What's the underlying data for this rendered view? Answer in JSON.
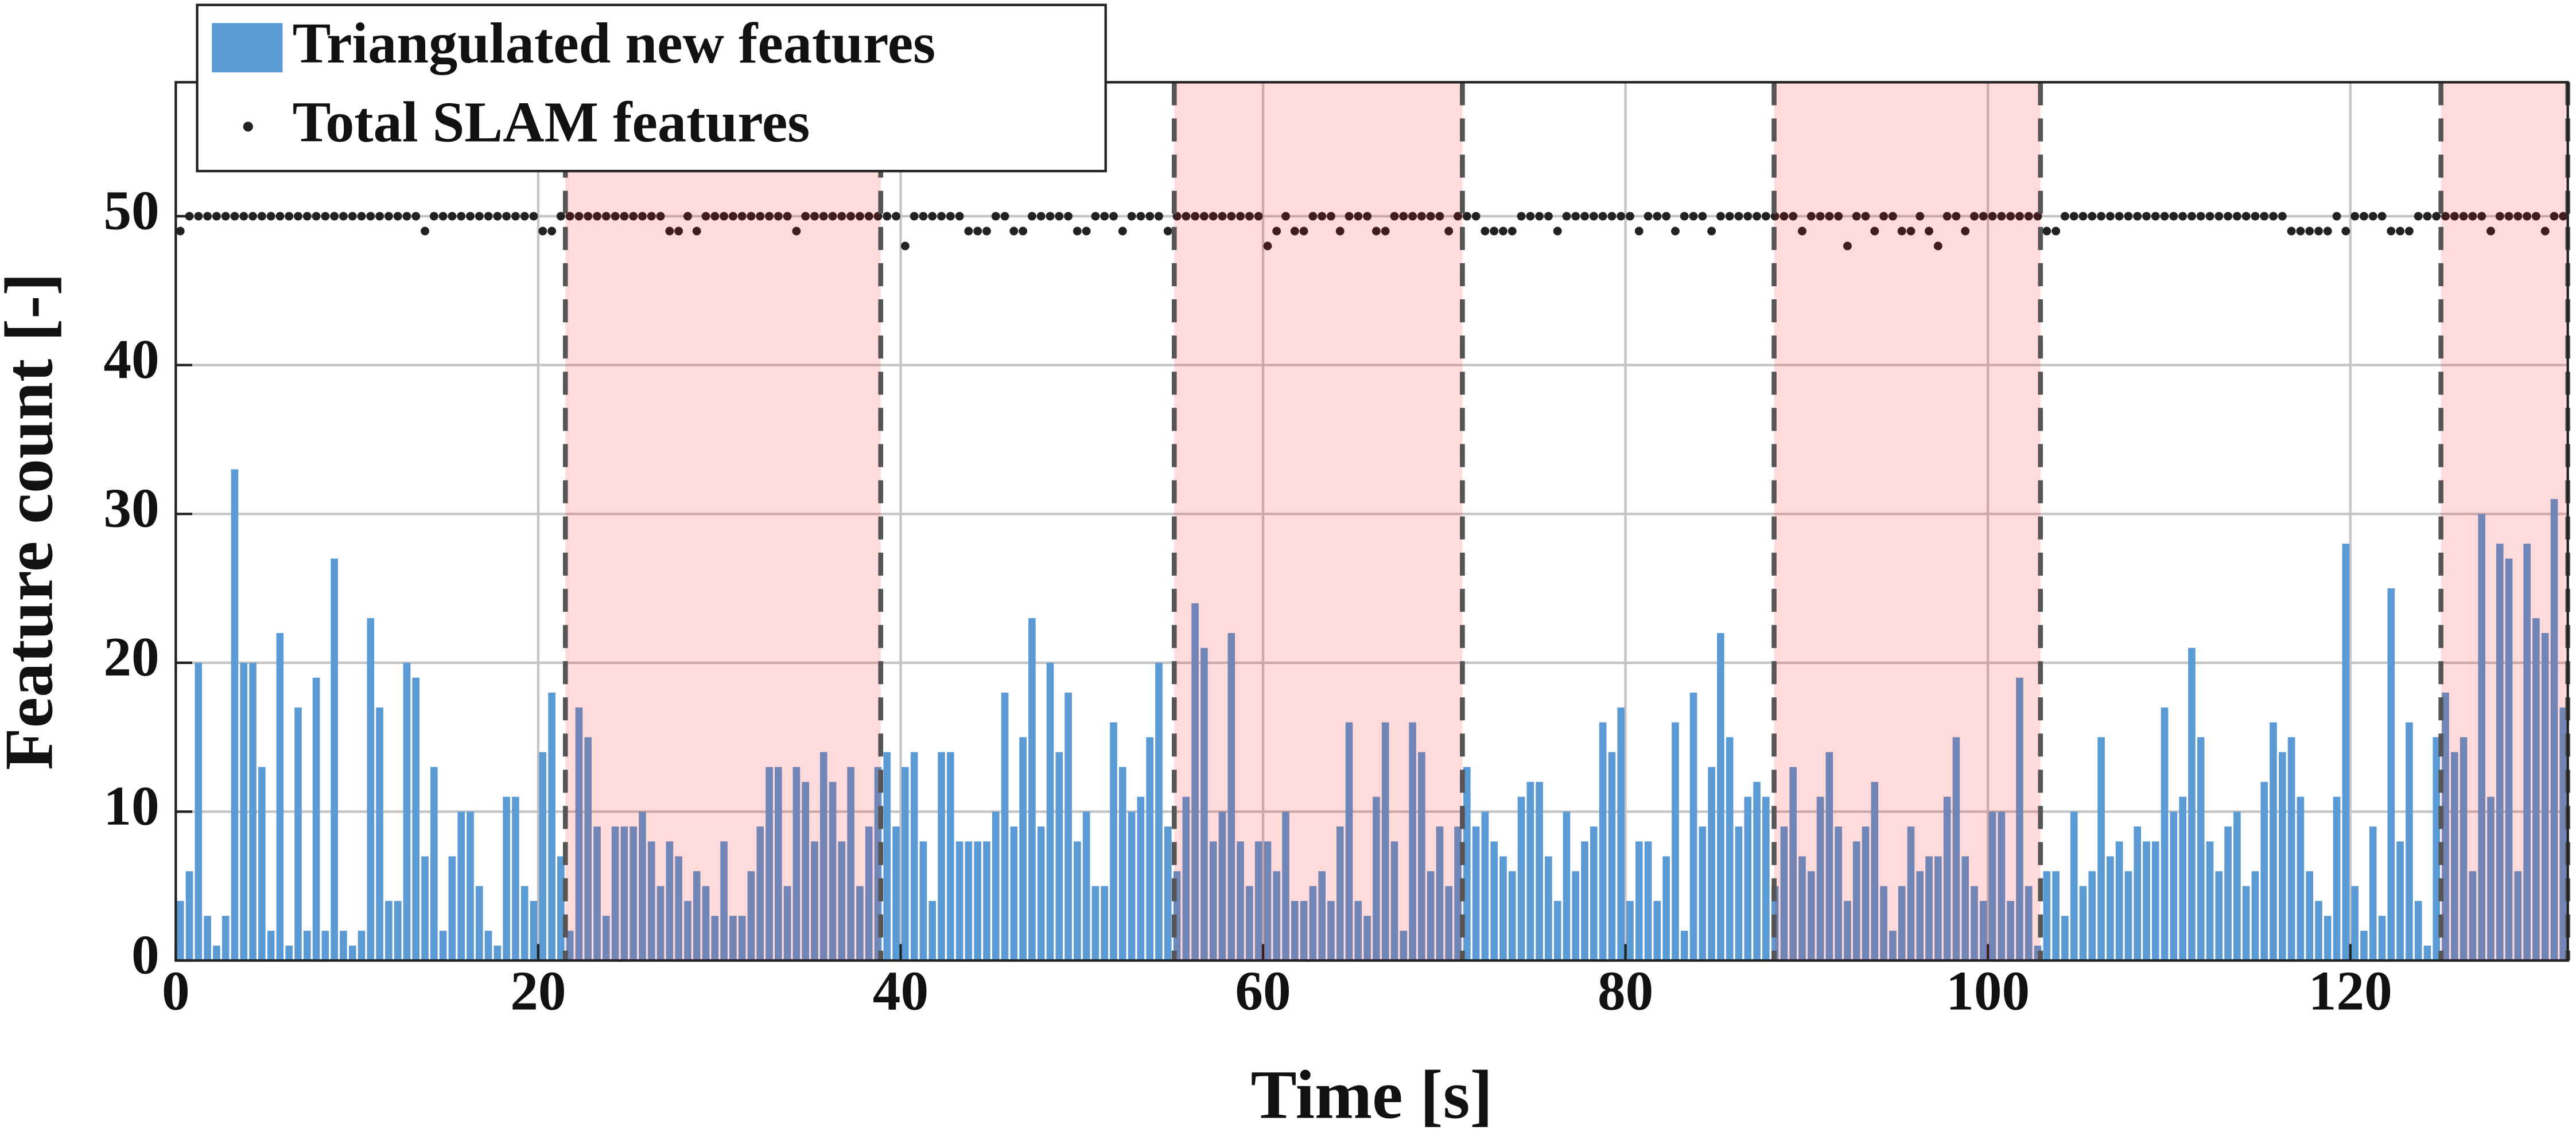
{
  "chart_data": {
    "type": "bar",
    "xlabel": "Time [s]",
    "ylabel": "Feature count [-]",
    "xlim": [
      0,
      132
    ],
    "ylim": [
      0,
      59
    ],
    "xticks": [
      0,
      20,
      40,
      60,
      80,
      100,
      120
    ],
    "yticks": [
      0,
      10,
      20,
      30,
      40,
      50
    ],
    "grid": true,
    "legend": "top-left",
    "shaded_regions": [
      [
        21.5,
        38.9
      ],
      [
        55.1,
        71
      ],
      [
        88.2,
        102.9
      ],
      [
        125,
        132
      ]
    ],
    "shade_color": "#ff0000",
    "edge_color": "#555555",
    "x": [
      0.25,
      0.75,
      1.25,
      1.75,
      2.25,
      2.75,
      3.25,
      3.75,
      4.25,
      4.75,
      5.25,
      5.75,
      6.25,
      6.75,
      7.25,
      7.75,
      8.25,
      8.75,
      9.25,
      9.75,
      10.25,
      10.75,
      11.25,
      11.75,
      12.25,
      12.75,
      13.25,
      13.75,
      14.25,
      14.75,
      15.25,
      15.75,
      16.25,
      16.75,
      17.25,
      17.75,
      18.25,
      18.75,
      19.25,
      19.75,
      20.25,
      20.75,
      21.25,
      21.75,
      22.25,
      22.75,
      23.25,
      23.75,
      24.25,
      24.75,
      25.25,
      25.75,
      26.25,
      26.75,
      27.25,
      27.75,
      28.25,
      28.75,
      29.25,
      29.75,
      30.25,
      30.75,
      31.25,
      31.75,
      32.25,
      32.75,
      33.25,
      33.75,
      34.25,
      34.75,
      35.25,
      35.75,
      36.25,
      36.75,
      37.25,
      37.75,
      38.25,
      38.75,
      39.25,
      39.75,
      40.25,
      40.75,
      41.25,
      41.75,
      42.25,
      42.75,
      43.25,
      43.75,
      44.25,
      44.75,
      45.25,
      45.75,
      46.25,
      46.75,
      47.25,
      47.75,
      48.25,
      48.75,
      49.25,
      49.75,
      50.25,
      50.75,
      51.25,
      51.75,
      52.25,
      52.75,
      53.25,
      53.75,
      54.25,
      54.75,
      55.25,
      55.75,
      56.25,
      56.75,
      57.25,
      57.75,
      58.25,
      58.75,
      59.25,
      59.75,
      60.25,
      60.75,
      61.25,
      61.75,
      62.25,
      62.75,
      63.25,
      63.75,
      64.25,
      64.75,
      65.25,
      65.75,
      66.25,
      66.75,
      67.25,
      67.75,
      68.25,
      68.75,
      69.25,
      69.75,
      70.25,
      70.75,
      71.25,
      71.75,
      72.25,
      72.75,
      73.25,
      73.75,
      74.25,
      74.75,
      75.25,
      75.75,
      76.25,
      76.75,
      77.25,
      77.75,
      78.25,
      78.75,
      79.25,
      79.75,
      80.25,
      80.75,
      81.25,
      81.75,
      82.25,
      82.75,
      83.25,
      83.75,
      84.25,
      84.75,
      85.25,
      85.75,
      86.25,
      86.75,
      87.25,
      87.75,
      88.25,
      88.75,
      89.25,
      89.75,
      90.25,
      90.75,
      91.25,
      91.75,
      92.25,
      92.75,
      93.25,
      93.75,
      94.25,
      94.75,
      95.25,
      95.75,
      96.25,
      96.75,
      97.25,
      97.75,
      98.25,
      98.75,
      99.25,
      99.75,
      100.25,
      100.75,
      101.25,
      101.75,
      102.25,
      102.75,
      103.25,
      103.75,
      104.25,
      104.75,
      105.25,
      105.75,
      106.25,
      106.75,
      107.25,
      107.75,
      108.25,
      108.75,
      109.25,
      109.75,
      110.25,
      110.75,
      111.25,
      111.75,
      112.25,
      112.75,
      113.25,
      113.75,
      114.25,
      114.75,
      115.25,
      115.75,
      116.25,
      116.75,
      117.25,
      117.75,
      118.25,
      118.75,
      119.25,
      119.75,
      120.25,
      120.75,
      121.25,
      121.75,
      122.25,
      122.75,
      123.25,
      123.75,
      124.25,
      124.75,
      125.25,
      125.75,
      126.25,
      126.75,
      127.25,
      127.75,
      128.25,
      128.75,
      129.25,
      129.75,
      130.25,
      130.75,
      131.25,
      131.75
    ],
    "series": [
      {
        "name": "Triangulated new features",
        "type": "bar",
        "color": "#5b9bd5",
        "values": [
          4,
          6,
          20,
          3,
          1,
          3,
          33,
          20,
          20,
          13,
          2,
          22,
          1,
          17,
          2,
          19,
          2,
          27,
          2,
          1,
          2,
          23,
          17,
          4,
          4,
          20,
          19,
          7,
          13,
          2,
          7,
          10,
          10,
          5,
          2,
          1,
          11,
          11,
          5,
          4,
          14,
          18,
          7,
          2,
          17,
          15,
          9,
          3,
          9,
          9,
          9,
          10,
          8,
          5,
          8,
          7,
          4,
          6,
          5,
          3,
          8,
          3,
          3,
          6,
          9,
          13,
          13,
          5,
          13,
          12,
          8,
          14,
          12,
          8,
          13,
          5,
          9,
          13,
          14,
          9,
          13,
          14,
          8,
          4,
          14,
          14,
          8,
          8,
          8,
          8,
          10,
          18,
          9,
          15,
          23,
          9,
          20,
          14,
          18,
          8,
          10,
          5,
          5,
          16,
          13,
          10,
          11,
          15,
          20,
          9,
          6,
          11,
          24,
          21,
          8,
          10,
          22,
          8,
          5,
          8,
          8,
          6,
          10,
          4,
          4,
          5,
          6,
          4,
          9,
          16,
          4,
          3,
          11,
          16,
          8,
          2,
          16,
          14,
          6,
          9,
          5,
          9,
          13,
          9,
          10,
          8,
          7,
          6,
          11,
          12,
          12,
          7,
          4,
          10,
          6,
          8,
          9,
          16,
          14,
          17,
          4,
          8,
          8,
          4,
          7,
          16,
          2,
          18,
          9,
          13,
          22,
          15,
          9,
          11,
          12,
          11,
          5,
          9,
          13,
          7,
          6,
          11,
          14,
          9,
          4,
          8,
          9,
          12,
          5,
          2,
          5,
          9,
          6,
          7,
          7,
          11,
          15,
          7,
          5,
          4,
          10,
          10,
          4,
          19,
          5,
          1,
          6,
          6,
          3,
          10,
          5,
          6,
          15,
          7,
          8,
          6,
          9,
          8,
          8,
          17,
          10,
          11,
          21,
          15,
          8,
          6,
          9,
          10,
          5,
          6,
          12,
          16,
          14,
          15,
          11,
          6,
          4,
          3,
          11,
          28,
          5,
          2,
          9,
          3,
          25,
          8,
          16,
          4,
          1,
          15,
          18,
          14,
          15,
          6,
          30,
          11,
          28,
          27,
          6,
          28,
          23,
          22,
          31,
          17
        ]
      },
      {
        "name": "Total SLAM features",
        "type": "scatter",
        "color": "#222222",
        "values": [
          49,
          50,
          50,
          50,
          50,
          50,
          50,
          50,
          50,
          50,
          50,
          50,
          50,
          50,
          50,
          50,
          50,
          50,
          50,
          50,
          50,
          50,
          50,
          50,
          50,
          50,
          50,
          49,
          50,
          50,
          50,
          50,
          50,
          50,
          50,
          50,
          50,
          50,
          50,
          50,
          49,
          49,
          50,
          50,
          50,
          50,
          50,
          50,
          50,
          50,
          50,
          50,
          50,
          50,
          49,
          49,
          50,
          49,
          50,
          50,
          50,
          50,
          50,
          50,
          50,
          50,
          50,
          50,
          49,
          50,
          50,
          50,
          50,
          50,
          50,
          50,
          50,
          50,
          50,
          50,
          48,
          50,
          50,
          50,
          50,
          50,
          50,
          49,
          49,
          49,
          50,
          50,
          49,
          49,
          50,
          50,
          50,
          50,
          50,
          49,
          49,
          50,
          50,
          50,
          49,
          50,
          50,
          50,
          50,
          49,
          50,
          50,
          50,
          50,
          50,
          50,
          50,
          50,
          50,
          50,
          48,
          49,
          50,
          49,
          49,
          50,
          50,
          50,
          49,
          50,
          50,
          50,
          49,
          49,
          50,
          50,
          50,
          50,
          50,
          50,
          49,
          50,
          50,
          50,
          49,
          49,
          49,
          49,
          50,
          50,
          50,
          50,
          49,
          50,
          50,
          50,
          50,
          50,
          50,
          50,
          50,
          49,
          50,
          50,
          50,
          49,
          50,
          50,
          50,
          49,
          50,
          50,
          50,
          50,
          50,
          50,
          50,
          50,
          50,
          49,
          50,
          50,
          50,
          50,
          48,
          50,
          50,
          49,
          50,
          50,
          49,
          49,
          50,
          49,
          48,
          50,
          50,
          49,
          50,
          50,
          50,
          50,
          50,
          50,
          50,
          50,
          49,
          49,
          50,
          50,
          50,
          50,
          50,
          50,
          50,
          50,
          50,
          50,
          50,
          50,
          50,
          50,
          50,
          50,
          50,
          50,
          50,
          50,
          50,
          50,
          50,
          50,
          50,
          49,
          49,
          49,
          49,
          49,
          50,
          49,
          50,
          50,
          50,
          50,
          49,
          49,
          49,
          50,
          50,
          50,
          50,
          50,
          50,
          50,
          50,
          49,
          50,
          50,
          50,
          50,
          50,
          49,
          50,
          50
        ]
      }
    ]
  }
}
